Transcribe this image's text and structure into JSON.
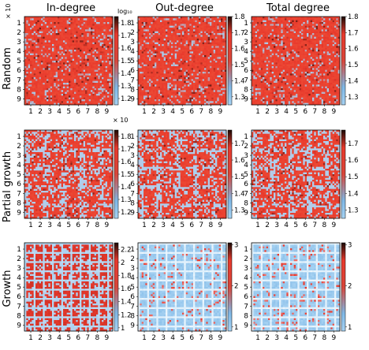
{
  "figure": {
    "column_titles": [
      "In-degree",
      "Out-degree",
      "Total degree"
    ],
    "row_titles": [
      "Random",
      "Partial growth",
      "Growth"
    ],
    "tick_labels": [
      "1",
      "2",
      "3",
      "4",
      "5",
      "6",
      "7",
      "8",
      "9"
    ],
    "multipliers": [
      "× 10",
      "× 10"
    ],
    "colorbar_scale_label": "log₁₀"
  },
  "chart_data": [
    {
      "type": "heatmap",
      "row": "Random",
      "column": "In-degree",
      "pattern": "random",
      "colorbar_ticks": [
        "1.8",
        "1.7",
        "1.6",
        "1.5",
        "1.4",
        "1.3",
        "1.2"
      ],
      "colorbar_range": [
        1.15,
        1.85
      ],
      "colors": [
        "#a7d2f2",
        "#e8392c",
        "#1a0a05"
      ]
    },
    {
      "type": "heatmap",
      "row": "Random",
      "column": "Out-degree",
      "pattern": "random",
      "colorbar_ticks": [
        "1.8",
        "1.7",
        "1.6",
        "1.5",
        "1.4",
        "1.3"
      ],
      "colorbar_range": [
        1.25,
        1.8
      ],
      "colors": [
        "#a7d2f2",
        "#e8392c",
        "#1a0a05"
      ]
    },
    {
      "type": "heatmap",
      "row": "Random",
      "column": "Total degree",
      "pattern": "random",
      "colorbar_ticks": [
        "1.8",
        "1.7",
        "1.6",
        "1.5",
        "1.4",
        "1.3"
      ],
      "colorbar_range": [
        1.25,
        1.8
      ],
      "colors": [
        "#a7d2f2",
        "#e8392c",
        "#1a0a05"
      ]
    },
    {
      "type": "heatmap",
      "row": "Partial growth",
      "column": "In-degree",
      "pattern": "partial",
      "colorbar_ticks": [
        "1.8",
        "1.7",
        "1.6",
        "1.5",
        "1.4",
        "1.3",
        "1.2"
      ],
      "colorbar_range": [
        1.15,
        1.85
      ],
      "colors": [
        "#a7d2f2",
        "#e8392c",
        "#1a0a05"
      ]
    },
    {
      "type": "heatmap",
      "row": "Partial growth",
      "column": "Out-degree",
      "pattern": "partial",
      "colorbar_ticks": [
        "1.7",
        "1.6",
        "1.5",
        "1.4",
        "1.3"
      ],
      "colorbar_range": [
        1.25,
        1.78
      ],
      "colors": [
        "#a7d2f2",
        "#e8392c",
        "#1a0a05"
      ]
    },
    {
      "type": "heatmap",
      "row": "Partial growth",
      "column": "Total degree",
      "pattern": "partial",
      "colorbar_ticks": [
        "1.7",
        "1.6",
        "1.5",
        "1.4",
        "1.3"
      ],
      "colorbar_range": [
        1.25,
        1.78
      ],
      "colors": [
        "#a7d2f2",
        "#e8392c",
        "#1a0a05"
      ]
    },
    {
      "type": "heatmap",
      "row": "Growth",
      "column": "In-degree",
      "pattern": "growth-red",
      "colorbar_ticks": [
        "2.2",
        "2",
        "1.8",
        "1.6",
        "1.4",
        "1.2",
        "1"
      ],
      "colorbar_range": [
        0.95,
        2.3
      ],
      "colors": [
        "#a7d2f2",
        "#e8392c",
        "#1a0a05"
      ]
    },
    {
      "type": "heatmap",
      "row": "Growth",
      "column": "Out-degree",
      "pattern": "growth-blue",
      "colorbar_ticks": [
        "3",
        "2",
        "1"
      ],
      "colorbar_range": [
        0.9,
        3.05
      ],
      "colors": [
        "#a7d2f2",
        "#e8392c",
        "#1a0a05"
      ]
    },
    {
      "type": "heatmap",
      "row": "Growth",
      "column": "Total degree",
      "pattern": "growth-blue",
      "colorbar_ticks": [
        "3",
        "2",
        "1"
      ],
      "colorbar_range": [
        0.9,
        3.05
      ],
      "colors": [
        "#a7d2f2",
        "#e8392c",
        "#1a0a05"
      ]
    }
  ]
}
